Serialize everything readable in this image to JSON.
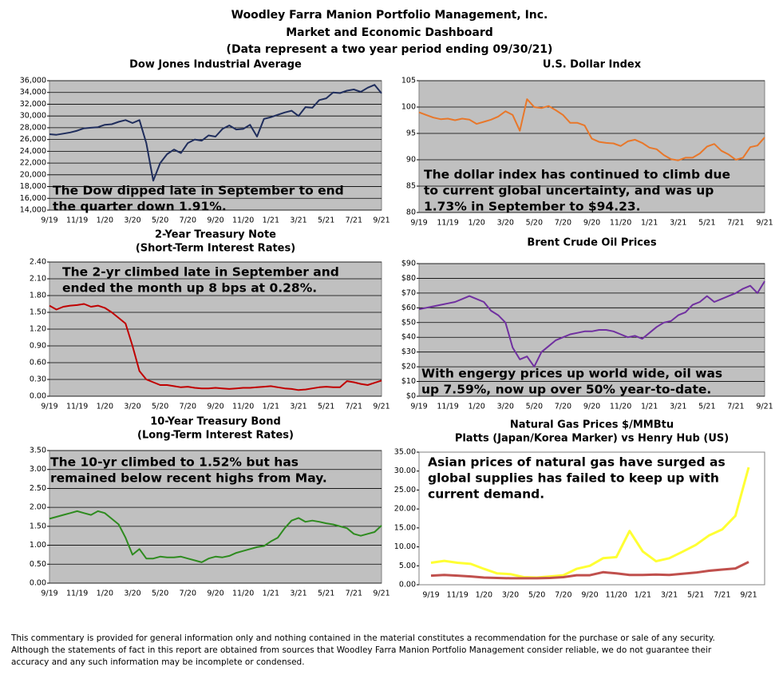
{
  "header": {
    "lines": [
      "Woodley Farra Manion Portfolio Management, Inc.",
      "Market and Economic Dashboard",
      "(Data represent a two year period ending 09/30/21)"
    ]
  },
  "chart_data": [
    {
      "type": "line",
      "title": "Dow Jones Industrial Average",
      "categories": [
        "9/19",
        null,
        null,
        null,
        "11/19",
        null,
        null,
        null,
        "1/20",
        null,
        null,
        null,
        "3/20",
        null,
        null,
        null,
        "5/20",
        null,
        null,
        null,
        "7/20",
        null,
        null,
        null,
        "9/20",
        null,
        null,
        null,
        "11/20",
        null,
        null,
        null,
        "1/21",
        null,
        null,
        null,
        "3/21",
        null,
        null,
        null,
        "5/21",
        null,
        null,
        null,
        "7/21",
        null,
        null,
        null,
        "9/21"
      ],
      "series": [
        {
          "color": "#1f2d5c",
          "values": [
            26900,
            26800,
            27000,
            27200,
            27500,
            27900,
            28000,
            28100,
            28500,
            28600,
            29000,
            29300,
            28800,
            29300,
            25400,
            19000,
            22000,
            23500,
            24300,
            23700,
            25400,
            26000,
            25800,
            26700,
            26500,
            27800,
            28400,
            27700,
            27800,
            28500,
            26500,
            29500,
            29800,
            30200,
            30600,
            30900,
            30000,
            31500,
            31400,
            32700,
            33000,
            34000,
            33900,
            34300,
            34500,
            34100,
            34800,
            35300,
            33850
          ]
        }
      ],
      "ylim": [
        14000,
        36000
      ],
      "yticks": [
        {
          "value": 14000,
          "label": "14,000"
        },
        {
          "value": 16000,
          "label": "16,000"
        },
        {
          "value": 18000,
          "label": "18,000"
        },
        {
          "value": 20000,
          "label": "20,000"
        },
        {
          "value": 22000,
          "label": "22,000"
        },
        {
          "value": 24000,
          "label": "24,000"
        },
        {
          "value": 26000,
          "label": "26,000"
        },
        {
          "value": 28000,
          "label": "28,000"
        },
        {
          "value": 30000,
          "label": "30,000"
        },
        {
          "value": 32000,
          "label": "32,000"
        },
        {
          "value": 34000,
          "label": "34,000"
        },
        {
          "value": 36000,
          "label": "36,000"
        }
      ],
      "grid": true,
      "plot_background": "#c0c0c0",
      "annotation": [
        "The Dow dipped late in September to end",
        "the quarter down 1.91%."
      ]
    },
    {
      "type": "line",
      "title": "U.S. Dollar Index",
      "categories": [
        "9/19",
        null,
        null,
        null,
        "11/19",
        null,
        null,
        null,
        "1/20",
        null,
        null,
        null,
        "3/20",
        null,
        null,
        null,
        "5/20",
        null,
        null,
        null,
        "7/20",
        null,
        null,
        null,
        "9/20",
        null,
        null,
        null,
        "11/20",
        null,
        null,
        null,
        "1/21",
        null,
        null,
        null,
        "3/21",
        null,
        null,
        null,
        "5/21",
        null,
        null,
        null,
        "7/21",
        null,
        null,
        null,
        "9/21"
      ],
      "series": [
        {
          "color": "#e8772a",
          "values": [
            99,
            98.5,
            98,
            97.7,
            97.8,
            97.5,
            97.8,
            97.6,
            96.8,
            97.2,
            97.6,
            98.2,
            99.2,
            98.5,
            95.5,
            101.5,
            100,
            99.8,
            100.2,
            99.4,
            98.5,
            97,
            97,
            96.5,
            94,
            93.4,
            93.2,
            93.1,
            92.6,
            93.5,
            93.8,
            93.2,
            92.3,
            92.0,
            90.9,
            90.1,
            89.9,
            90.4,
            90.4,
            91.2,
            92.5,
            93.0,
            91.7,
            91.0,
            90.0,
            90.4,
            92.4,
            92.7,
            94.23
          ]
        }
      ],
      "ylim": [
        80,
        105
      ],
      "yticks": [
        80,
        85,
        90,
        95,
        100,
        105
      ],
      "grid": true,
      "plot_background": "#c0c0c0",
      "annotation": [
        "The dollar index has continued to climb due",
        "to current global uncertainty, and was up",
        "1.73% in September to $94.23."
      ]
    },
    {
      "type": "line",
      "title": "2-Year Treasury Note",
      "subtitle": "(Short-Term Interest Rates)",
      "categories": [
        "9/19",
        null,
        null,
        null,
        "11/19",
        null,
        null,
        null,
        "1/20",
        null,
        null,
        null,
        "3/20",
        null,
        null,
        null,
        "5/20",
        null,
        null,
        null,
        "7/20",
        null,
        null,
        null,
        "9/20",
        null,
        null,
        null,
        "11/20",
        null,
        null,
        null,
        "1/21",
        null,
        null,
        null,
        "3/21",
        null,
        null,
        null,
        "5/21",
        null,
        null,
        null,
        "7/21",
        null,
        null,
        null,
        "9/21"
      ],
      "series": [
        {
          "color": "#c00000",
          "values": [
            1.62,
            1.55,
            1.6,
            1.62,
            1.63,
            1.65,
            1.6,
            1.62,
            1.58,
            1.5,
            1.4,
            1.3,
            0.9,
            0.45,
            0.3,
            0.25,
            0.2,
            0.2,
            0.18,
            0.16,
            0.17,
            0.15,
            0.14,
            0.14,
            0.15,
            0.14,
            0.13,
            0.14,
            0.15,
            0.15,
            0.16,
            0.17,
            0.18,
            0.16,
            0.14,
            0.13,
            0.11,
            0.12,
            0.14,
            0.16,
            0.17,
            0.16,
            0.16,
            0.27,
            0.25,
            0.22,
            0.2,
            0.24,
            0.28
          ]
        }
      ],
      "ylim": [
        0,
        2.4
      ],
      "yticks": [
        {
          "value": 0,
          "label": "0.00"
        },
        {
          "value": 0.3,
          "label": "0.30"
        },
        {
          "value": 0.6,
          "label": "0.60"
        },
        {
          "value": 0.9,
          "label": "0.90"
        },
        {
          "value": 1.2,
          "label": "1.20"
        },
        {
          "value": 1.5,
          "label": "1.50"
        },
        {
          "value": 1.8,
          "label": "1.80"
        },
        {
          "value": 2.1,
          "label": "2.10"
        },
        {
          "value": 2.4,
          "label": "2.40"
        }
      ],
      "grid": true,
      "plot_background": "#c0c0c0",
      "annotation": [
        "The 2-yr climbed late in September and",
        "ended the month up 8 bps at 0.28%."
      ]
    },
    {
      "type": "line",
      "title": "Brent Crude Oil Prices",
      "categories": [
        "9/19",
        null,
        null,
        null,
        "11/19",
        null,
        null,
        null,
        "1/20",
        null,
        null,
        null,
        "3/20",
        null,
        null,
        null,
        "5/20",
        null,
        null,
        null,
        "7/20",
        null,
        null,
        null,
        "9/20",
        null,
        null,
        null,
        "11/20",
        null,
        null,
        null,
        "1/21",
        null,
        null,
        null,
        "3/21",
        null,
        null,
        null,
        "5/21",
        null,
        null,
        null,
        "7/21",
        null,
        null,
        null,
        "9/21"
      ],
      "series": [
        {
          "color": "#7030a0",
          "values": [
            59,
            60,
            61,
            62,
            63,
            64,
            66,
            68,
            66,
            64,
            58,
            55,
            50,
            33,
            25,
            27,
            20,
            30,
            34,
            38,
            40,
            42,
            43,
            44,
            44,
            45,
            45,
            44,
            42,
            40,
            41,
            39,
            43,
            47,
            50,
            51,
            55,
            57,
            62,
            64,
            68,
            64,
            66,
            68,
            70,
            73,
            75,
            70,
            78
          ]
        }
      ],
      "ylim": [
        0,
        90
      ],
      "yticks": [
        {
          "value": 0,
          "label": "$0"
        },
        {
          "value": 10,
          "label": "$10"
        },
        {
          "value": 20,
          "label": "$20"
        },
        {
          "value": 30,
          "label": "$30"
        },
        {
          "value": 40,
          "label": "$40"
        },
        {
          "value": 50,
          "label": "$50"
        },
        {
          "value": 60,
          "label": "$60"
        },
        {
          "value": 70,
          "label": "$70"
        },
        {
          "value": 80,
          "label": "$80"
        },
        {
          "value": 90,
          "label": "$90"
        }
      ],
      "grid": true,
      "plot_background": "#c0c0c0",
      "annotation": [
        "With engergy prices up world wide, oil was",
        "up 7.59%, now up over 50% year-to-date."
      ]
    },
    {
      "type": "line",
      "title": "10-Year Treasury Bond",
      "subtitle": "(Long-Term Interest Rates)",
      "categories": [
        "9/19",
        null,
        null,
        null,
        "11/19",
        null,
        null,
        null,
        "1/20",
        null,
        null,
        null,
        "3/20",
        null,
        null,
        null,
        "5/20",
        null,
        null,
        null,
        "7/20",
        null,
        null,
        null,
        "9/20",
        null,
        null,
        null,
        "11/20",
        null,
        null,
        null,
        "1/21",
        null,
        null,
        null,
        "3/21",
        null,
        null,
        null,
        "5/21",
        null,
        null,
        null,
        "7/21",
        null,
        null,
        null,
        "9/21"
      ],
      "series": [
        {
          "color": "#2e8b1f",
          "values": [
            1.7,
            1.75,
            1.8,
            1.85,
            1.9,
            1.85,
            1.8,
            1.9,
            1.85,
            1.7,
            1.55,
            1.2,
            0.75,
            0.9,
            0.65,
            0.65,
            0.7,
            0.68,
            0.68,
            0.7,
            0.65,
            0.6,
            0.55,
            0.65,
            0.7,
            0.68,
            0.72,
            0.8,
            0.85,
            0.9,
            0.95,
            0.98,
            1.1,
            1.2,
            1.45,
            1.65,
            1.72,
            1.62,
            1.65,
            1.62,
            1.58,
            1.55,
            1.5,
            1.45,
            1.3,
            1.25,
            1.3,
            1.35,
            1.52
          ]
        }
      ],
      "ylim": [
        0,
        3.5
      ],
      "yticks": [
        {
          "value": 0,
          "label": "0.00"
        },
        {
          "value": 0.5,
          "label": "0.50"
        },
        {
          "value": 1,
          "label": "1.00"
        },
        {
          "value": 1.5,
          "label": "1.50"
        },
        {
          "value": 2,
          "label": "2.00"
        },
        {
          "value": 2.5,
          "label": "2.50"
        },
        {
          "value": 3,
          "label": "3.00"
        },
        {
          "value": 3.5,
          "label": "3.50"
        }
      ],
      "grid": true,
      "plot_background": "#c0c0c0",
      "annotation": [
        "The 10-yr climbed to 1.52% but has",
        "remained below recent highs from May."
      ]
    },
    {
      "type": "line",
      "title": "Natural Gas Prices $/MMBtu",
      "subtitle": "Platts (Japan/Korea Marker) vs Henry Hub (US)",
      "categories": [
        "9/19",
        null,
        "11/19",
        null,
        "1/20",
        null,
        "3/20",
        null,
        "5/20",
        null,
        "7/20",
        null,
        "9/20",
        null,
        "11/20",
        null,
        "1/21",
        null,
        "3/21",
        null,
        "5/21",
        null,
        "7/21",
        null,
        "9/21"
      ],
      "series": [
        {
          "color": "#ffff33",
          "values": [
            5.8,
            6.3,
            5.8,
            5.5,
            4.2,
            3.0,
            2.8,
            2.0,
            1.9,
            2.2,
            2.5,
            4.2,
            5.0,
            7.0,
            7.3,
            14.2,
            8.8,
            6.2,
            7.0,
            8.7,
            10.5,
            13.0,
            14.6,
            18.2,
            31.0
          ]
        },
        {
          "color": "#c0504d",
          "values": [
            2.4,
            2.6,
            2.4,
            2.2,
            1.9,
            1.8,
            1.7,
            1.7,
            1.7,
            1.8,
            2.0,
            2.5,
            2.5,
            3.3,
            3.0,
            2.6,
            2.6,
            2.7,
            2.6,
            2.9,
            3.2,
            3.7,
            4.0,
            4.3,
            6.0
          ]
        }
      ],
      "ylim": [
        0,
        35
      ],
      "yticks": [
        {
          "value": 0,
          "label": "0.00"
        },
        {
          "value": 5,
          "label": "5.00"
        },
        {
          "value": 10,
          "label": "10.00"
        },
        {
          "value": 15,
          "label": "15.00"
        },
        {
          "value": 20,
          "label": "20.00"
        },
        {
          "value": 25,
          "label": "25.00"
        },
        {
          "value": 30,
          "label": "30.00"
        },
        {
          "value": 35,
          "label": "35.00"
        }
      ],
      "grid": false,
      "plot_background": "#ffffff",
      "annotation": [
        "Asian prices of natural gas have surged as",
        "global supplies has failed to keep up with",
        "current demand."
      ]
    }
  ],
  "footer": {
    "lines": [
      "This commentary is provided for general information only and nothing contained in the material constitutes a recommendation for the purchase or sale of any security.",
      "Although the statements of fact in this report are obtained from sources that Woodley Farra Manion Portfolio Management consider reliable, we do not guarantee their",
      "accuracy and any such information may be incomplete or condensed."
    ]
  }
}
